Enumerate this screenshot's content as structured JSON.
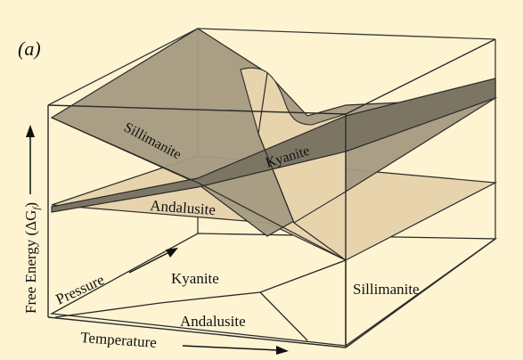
{
  "panel_label": "(a)",
  "y_axis_label": "Free Energy (ΔG",
  "y_axis_subscript": "f",
  "y_axis_close": ")",
  "surfaces": {
    "sillimanite": "Sillimanite",
    "kyanite": "Kyanite",
    "andalusite": "Andalusite"
  },
  "floor": {
    "pressure_axis": "Pressure",
    "temperature_axis": "Temperature",
    "fields": {
      "kyanite": "Kyanite",
      "andalusite": "Andalusite",
      "sillimanite": "Sillimanite"
    }
  },
  "colors": {
    "background": "#fef4d2",
    "sillimanite_surface": "#a59a81",
    "kyanite_surface": "#7d7564",
    "andalusite_surface": "#e7d4ad",
    "outline": "#2a2a2a"
  }
}
